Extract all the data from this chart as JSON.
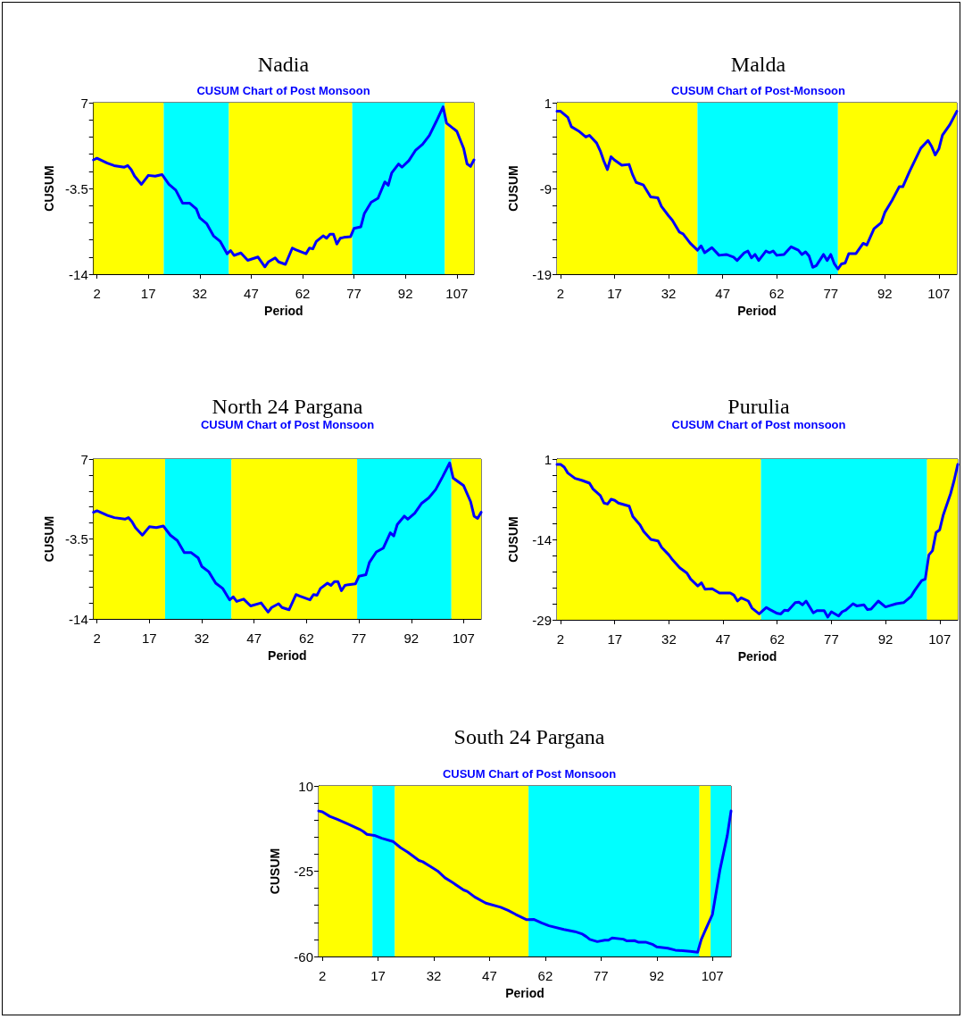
{
  "chart_data": [
    {
      "type": "line",
      "title": "Nadia",
      "subtitle": "CUSUM Chart of Post Monsoon",
      "xlabel": "Period",
      "ylabel": "CUSUM",
      "marker": "none",
      "line_style": "solid",
      "xlim": [
        1,
        112
      ],
      "xticks": [
        2,
        17,
        32,
        47,
        62,
        77,
        92,
        107
      ],
      "ylim": [
        -14,
        7
      ],
      "yticks": [
        -14,
        {
          "value": -11.9,
          "label": null
        },
        {
          "value": -9.8,
          "label": null
        },
        {
          "value": -7.7,
          "label": null
        },
        {
          "value": -5.6,
          "label": null
        },
        -3.5,
        {
          "value": -1.4,
          "label": null
        },
        {
          "value": 0.7,
          "label": null
        },
        {
          "value": 2.8,
          "label": null
        },
        {
          "value": 4.9,
          "label": null
        },
        7
      ],
      "bands": [
        {
          "axis": "x",
          "from": 1,
          "to": 21.5,
          "color": "#ffff00"
        },
        {
          "axis": "x",
          "from": 21.5,
          "to": 40.5,
          "color": "#00ffff"
        },
        {
          "axis": "x",
          "from": 40.5,
          "to": 76.5,
          "color": "#ffff00"
        },
        {
          "axis": "x",
          "from": 76.5,
          "to": 103.5,
          "color": "#00ffff"
        },
        {
          "axis": "x",
          "from": 103.5,
          "to": 112,
          "color": "#ffff00"
        }
      ],
      "x": [
        1,
        2,
        5,
        7,
        10,
        11,
        12,
        13,
        15,
        17,
        19,
        21,
        23,
        25,
        27,
        29,
        31,
        32,
        34,
        36,
        38,
        40,
        41,
        42,
        44,
        46,
        49,
        51,
        52,
        54,
        55,
        57,
        59,
        60,
        63,
        64,
        65,
        66,
        68,
        69,
        70,
        71,
        72,
        73,
        74,
        76,
        77,
        79,
        80,
        82,
        84,
        86,
        87,
        88,
        90,
        91,
        93,
        95,
        97,
        99,
        101,
        103,
        104,
        107,
        109,
        110,
        111,
        112
      ],
      "series": [
        {
          "color": "#0000ff",
          "values": [
            0.0,
            0.2,
            -0.4,
            -0.7,
            -0.9,
            -0.7,
            -1.2,
            -2.0,
            -3.0,
            -1.9,
            -2.0,
            -1.8,
            -3.0,
            -3.7,
            -5.3,
            -5.3,
            -6.0,
            -7.1,
            -7.8,
            -9.3,
            -10.0,
            -11.5,
            -11.1,
            -11.7,
            -11.4,
            -12.3,
            -11.9,
            -13.1,
            -12.5,
            -12.0,
            -12.5,
            -12.8,
            -10.8,
            -11.0,
            -11.5,
            -10.8,
            -10.9,
            -10.0,
            -9.3,
            -9.6,
            -9.1,
            -9.1,
            -10.3,
            -9.6,
            -9.5,
            -9.4,
            -8.4,
            -8.2,
            -6.6,
            -5.2,
            -4.7,
            -2.7,
            -3.1,
            -1.6,
            -0.5,
            -0.9,
            -0.1,
            1.2,
            1.9,
            3.0,
            4.7,
            6.5,
            4.5,
            3.5,
            1.4,
            -0.5,
            -0.8,
            0.0
          ]
        }
      ]
    },
    {
      "type": "line",
      "title": "Malda",
      "subtitle": "CUSUM Chart of Post-Monsoon",
      "xlabel": "Period",
      "ylabel": "CUSUM",
      "marker": "none",
      "line_style": "solid",
      "xlim": [
        1,
        112
      ],
      "xticks": [
        2,
        17,
        32,
        47,
        62,
        77,
        92,
        107
      ],
      "ylim": [
        -19,
        1
      ],
      "yticks": [
        -19,
        {
          "value": -17,
          "label": null
        },
        {
          "value": -15,
          "label": null
        },
        {
          "value": -13,
          "label": null
        },
        {
          "value": -11,
          "label": null
        },
        -9,
        {
          "value": -7,
          "label": null
        },
        {
          "value": -5,
          "label": null
        },
        {
          "value": -3,
          "label": null
        },
        {
          "value": -1,
          "label": null
        },
        1
      ],
      "bands": [
        {
          "axis": "x",
          "from": 1,
          "to": 40,
          "color": "#ffff00"
        },
        {
          "axis": "x",
          "from": 40,
          "to": 79,
          "color": "#00ffff"
        },
        {
          "axis": "x",
          "from": 79,
          "to": 112,
          "color": "#ffff00"
        }
      ],
      "x": [
        1,
        2,
        4,
        5,
        7,
        9,
        10,
        12,
        13,
        14,
        15,
        16,
        17,
        19,
        21,
        22,
        23,
        25,
        27,
        29,
        30,
        32,
        33,
        35,
        36,
        38,
        40,
        41,
        42,
        44,
        46,
        48,
        50,
        51,
        53,
        54,
        55,
        56,
        57,
        59,
        60,
        61,
        62,
        64,
        66,
        68,
        69,
        70,
        71,
        72,
        73,
        75,
        76,
        77,
        78,
        79,
        80,
        81,
        82,
        84,
        86,
        87,
        89,
        91,
        92,
        94,
        96,
        97,
        99,
        102,
        104,
        105,
        106,
        107,
        108,
        110,
        112
      ],
      "series": [
        {
          "color": "#0000ff",
          "values": [
            0.0,
            0.0,
            -0.7,
            -1.8,
            -2.3,
            -3.0,
            -2.8,
            -3.7,
            -4.6,
            -5.8,
            -6.8,
            -5.3,
            -5.7,
            -6.3,
            -6.2,
            -7.4,
            -8.3,
            -8.6,
            -10.0,
            -10.1,
            -11.1,
            -12.2,
            -12.7,
            -14.1,
            -14.3,
            -15.4,
            -16.2,
            -15.7,
            -16.5,
            -15.9,
            -16.8,
            -16.7,
            -17.0,
            -17.4,
            -16.5,
            -16.3,
            -17.1,
            -16.7,
            -17.4,
            -16.3,
            -16.5,
            -16.3,
            -16.8,
            -16.7,
            -15.8,
            -16.2,
            -16.7,
            -16.4,
            -16.9,
            -18.2,
            -18.0,
            -16.7,
            -17.4,
            -16.7,
            -17.8,
            -18.4,
            -17.8,
            -17.7,
            -16.6,
            -16.6,
            -15.4,
            -15.6,
            -13.7,
            -13.0,
            -11.8,
            -10.4,
            -8.8,
            -8.8,
            -6.9,
            -4.3,
            -3.4,
            -4.1,
            -5.1,
            -4.4,
            -2.8,
            -1.6,
            0.0
          ]
        }
      ]
    },
    {
      "type": "line",
      "title": "North 24 Pargana",
      "subtitle": "CUSUM Chart of Post Monsoon",
      "xlabel": "Period",
      "ylabel": "CUSUM",
      "marker": "none",
      "line_style": "solid",
      "xlim": [
        1,
        112
      ],
      "xticks": [
        2,
        17,
        32,
        47,
        62,
        77,
        92,
        107
      ],
      "ylim": [
        -14,
        7
      ],
      "yticks": [
        -14,
        {
          "value": -11.9,
          "label": null
        },
        {
          "value": -9.8,
          "label": null
        },
        {
          "value": -7.7,
          "label": null
        },
        {
          "value": -5.6,
          "label": null
        },
        -3.5,
        {
          "value": -1.4,
          "label": null
        },
        {
          "value": 0.7,
          "label": null
        },
        {
          "value": 2.8,
          "label": null
        },
        {
          "value": 4.9,
          "label": null
        },
        7
      ],
      "bands": [
        {
          "axis": "x",
          "from": 1,
          "to": 21.5,
          "color": "#ffff00"
        },
        {
          "axis": "x",
          "from": 21.5,
          "to": 40.5,
          "color": "#00ffff"
        },
        {
          "axis": "x",
          "from": 40.5,
          "to": 76.5,
          "color": "#ffff00"
        },
        {
          "axis": "x",
          "from": 76.5,
          "to": 103.5,
          "color": "#00ffff"
        },
        {
          "axis": "x",
          "from": 103.5,
          "to": 112,
          "color": "#ffff00"
        }
      ],
      "x": [
        1,
        2,
        5,
        7,
        10,
        11,
        12,
        13,
        15,
        17,
        19,
        21,
        23,
        25,
        27,
        29,
        31,
        32,
        34,
        36,
        38,
        40,
        41,
        42,
        44,
        46,
        49,
        51,
        52,
        54,
        55,
        57,
        59,
        60,
        63,
        64,
        65,
        66,
        68,
        69,
        70,
        71,
        72,
        73,
        74,
        76,
        77,
        79,
        80,
        82,
        84,
        86,
        87,
        88,
        90,
        91,
        93,
        95,
        97,
        99,
        101,
        103,
        104,
        107,
        109,
        110,
        111,
        112
      ],
      "series": [
        {
          "color": "#0000ff",
          "values": [
            0.0,
            0.2,
            -0.4,
            -0.7,
            -0.9,
            -0.7,
            -1.2,
            -2.0,
            -3.0,
            -1.9,
            -2.0,
            -1.8,
            -3.0,
            -3.7,
            -5.3,
            -5.3,
            -6.0,
            -7.1,
            -7.8,
            -9.3,
            -10.0,
            -11.5,
            -11.1,
            -11.7,
            -11.4,
            -12.3,
            -11.9,
            -13.1,
            -12.5,
            -12.0,
            -12.5,
            -12.8,
            -10.8,
            -11.0,
            -11.5,
            -10.8,
            -10.9,
            -10.0,
            -9.3,
            -9.6,
            -9.1,
            -9.1,
            -10.3,
            -9.6,
            -9.5,
            -9.4,
            -8.4,
            -8.2,
            -6.6,
            -5.2,
            -4.7,
            -2.7,
            -3.1,
            -1.6,
            -0.5,
            -0.9,
            -0.1,
            1.2,
            1.9,
            3.0,
            4.7,
            6.5,
            4.5,
            3.5,
            1.4,
            -0.5,
            -0.8,
            0.0
          ]
        }
      ]
    },
    {
      "type": "line",
      "title": "Purulia",
      "subtitle": "CUSUM Chart of Post monsoon",
      "xlabel": "Period",
      "ylabel": "CUSUM",
      "marker": "none",
      "line_style": "solid",
      "xlim": [
        1,
        112
      ],
      "xticks": [
        2,
        17,
        32,
        47,
        62,
        77,
        92,
        107
      ],
      "ylim": [
        -29,
        1
      ],
      "yticks": [
        -29,
        {
          "value": -26,
          "label": null
        },
        {
          "value": -23,
          "label": null
        },
        {
          "value": -20,
          "label": null
        },
        {
          "value": -17,
          "label": null
        },
        -14,
        {
          "value": -11,
          "label": null
        },
        {
          "value": -8,
          "label": null
        },
        {
          "value": -5,
          "label": null
        },
        {
          "value": -2,
          "label": null
        },
        1
      ],
      "bands": [
        {
          "axis": "x",
          "from": 1,
          "to": 57.5,
          "color": "#ffff00"
        },
        {
          "axis": "x",
          "from": 57.5,
          "to": 103.5,
          "color": "#00ffff"
        },
        {
          "axis": "x",
          "from": 103.5,
          "to": 112,
          "color": "#ffff00"
        }
      ],
      "x": [
        1,
        2,
        3,
        4,
        6,
        8,
        10,
        11,
        13,
        14,
        15,
        16,
        17,
        18,
        21,
        22,
        24,
        25,
        27,
        29,
        30,
        32,
        33,
        35,
        37,
        38,
        40,
        41,
        42,
        44,
        46,
        49,
        50,
        51,
        52,
        54,
        55,
        57,
        59,
        60,
        62,
        63,
        64,
        65,
        67,
        68,
        69,
        70,
        72,
        73,
        75,
        76,
        77,
        79,
        80,
        81,
        83,
        84,
        86,
        87,
        88,
        90,
        92,
        93,
        95,
        97,
        99,
        100,
        102,
        103,
        104,
        105,
        106,
        107,
        108,
        110,
        111,
        112
      ],
      "series": [
        {
          "color": "#0000ff",
          "values": [
            0.0,
            0.0,
            -0.5,
            -1.6,
            -2.6,
            -3.0,
            -3.5,
            -4.6,
            -5.8,
            -7.2,
            -7.4,
            -6.5,
            -6.7,
            -7.2,
            -7.8,
            -9.7,
            -11.3,
            -12.5,
            -14.0,
            -14.3,
            -15.5,
            -16.9,
            -17.8,
            -19.3,
            -20.3,
            -21.4,
            -22.7,
            -22.1,
            -23.3,
            -23.2,
            -24.0,
            -24.0,
            -24.4,
            -25.5,
            -24.9,
            -25.5,
            -26.8,
            -27.9,
            -26.7,
            -27.1,
            -27.8,
            -27.9,
            -27.2,
            -27.3,
            -25.8,
            -25.7,
            -26.2,
            -25.5,
            -27.7,
            -27.3,
            -27.3,
            -28.5,
            -27.5,
            -28.3,
            -27.5,
            -27.2,
            -26.0,
            -26.4,
            -26.2,
            -27.1,
            -27.0,
            -25.5,
            -26.6,
            -26.4,
            -26.0,
            -25.8,
            -24.7,
            -23.6,
            -21.7,
            -21.4,
            -16.9,
            -16.1,
            -12.7,
            -12.2,
            -9.4,
            -5.5,
            -3.0,
            0.0
          ]
        }
      ]
    },
    {
      "type": "line",
      "title": "South 24 Pargana",
      "subtitle": "CUSUM Chart of Post Monsoon",
      "xlabel": "Period",
      "ylabel": "CUSUM",
      "marker": "none",
      "line_style": "solid",
      "xlim": [
        1,
        112
      ],
      "xticks": [
        2,
        17,
        32,
        47,
        62,
        77,
        92,
        107
      ],
      "ylim": [
        -60,
        10
      ],
      "yticks": [
        -60,
        {
          "value": -53,
          "label": null
        },
        {
          "value": -46,
          "label": null
        },
        {
          "value": -39,
          "label": null
        },
        {
          "value": -32,
          "label": null
        },
        -25,
        {
          "value": -18,
          "label": null
        },
        {
          "value": -11,
          "label": null
        },
        {
          "value": -4,
          "label": null
        },
        {
          "value": 3,
          "label": null
        },
        10
      ],
      "bands": [
        {
          "axis": "x",
          "from": 1,
          "to": 15.5,
          "color": "#ffff00"
        },
        {
          "axis": "x",
          "from": 15.5,
          "to": 21.5,
          "color": "#00ffff"
        },
        {
          "axis": "x",
          "from": 21.5,
          "to": 57.5,
          "color": "#ffff00"
        },
        {
          "axis": "x",
          "from": 57.5,
          "to": 103.5,
          "color": "#00ffff"
        },
        {
          "axis": "x",
          "from": 103.5,
          "to": 106.5,
          "color": "#ffff00"
        },
        {
          "axis": "x",
          "from": 106.5,
          "to": 112,
          "color": "#00ffff"
        }
      ],
      "x": [
        1,
        2,
        4,
        6,
        9,
        12,
        13,
        14,
        16,
        18,
        21,
        23,
        25,
        28,
        29,
        31,
        33,
        35,
        37,
        40,
        41,
        43,
        46,
        50,
        52,
        54,
        57,
        59,
        61,
        63,
        67,
        70,
        72,
        73,
        74,
        76,
        78,
        79,
        80,
        83,
        84,
        86,
        87,
        89,
        91,
        92,
        95,
        97,
        99,
        101,
        103,
        104,
        105,
        107,
        109,
        111,
        112
      ],
      "series": [
        {
          "color": "#0000ff",
          "values": [
            -0.3,
            -0.6,
            -2.5,
            -3.7,
            -5.7,
            -7.8,
            -8.7,
            -9.9,
            -10.3,
            -11.5,
            -12.8,
            -15.3,
            -17.2,
            -20.6,
            -21.1,
            -23.0,
            -24.9,
            -27.7,
            -29.6,
            -32.7,
            -33.3,
            -35.6,
            -38.1,
            -39.8,
            -41.1,
            -42.7,
            -44.9,
            -44.8,
            -46.2,
            -47.4,
            -48.9,
            -49.8,
            -50.8,
            -51.8,
            -53.0,
            -53.9,
            -53.3,
            -53.3,
            -52.4,
            -52.9,
            -53.6,
            -53.5,
            -54.1,
            -54.1,
            -55.1,
            -56.1,
            -56.6,
            -57.4,
            -57.6,
            -57.9,
            -58.3,
            -53.0,
            -49.5,
            -42.7,
            -24.6,
            -10.3,
            -0.3
          ]
        }
      ]
    }
  ]
}
